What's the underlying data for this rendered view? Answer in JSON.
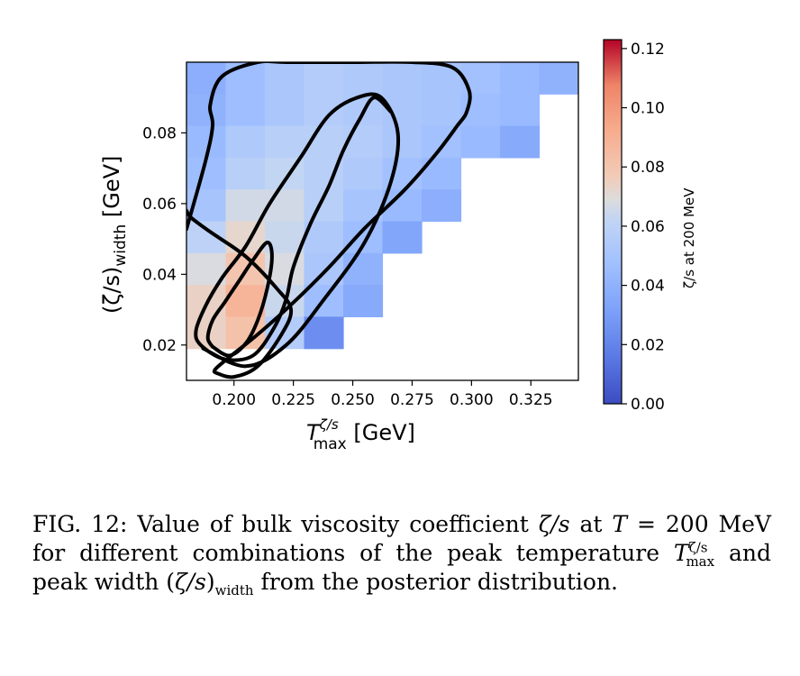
{
  "chart_data": {
    "type": "heatmap",
    "xlabel": "T",
    "xlabel_sup": "ζ/s",
    "xlabel_sub": "max",
    "xlabel_unit": " [GeV]",
    "ylabel": "(ζ/s)",
    "ylabel_sub": "width",
    "ylabel_unit": " [GeV]",
    "colorbar_label": "ζ/s at 200 MeV",
    "xlim": [
      0.18,
      0.345
    ],
    "ylim": [
      0.01,
      0.1
    ],
    "xticks": [
      0.2,
      0.225,
      0.25,
      0.275,
      0.3,
      0.325
    ],
    "xtick_labels": [
      "0.200",
      "0.225",
      "0.250",
      "0.275",
      "0.300",
      "0.325"
    ],
    "yticks": [
      0.02,
      0.04,
      0.06,
      0.08
    ],
    "ytick_labels": [
      "0.02",
      "0.04",
      "0.06",
      "0.08"
    ],
    "colorbar_range": [
      0.0,
      0.123
    ],
    "colorbar_ticks": [
      0.0,
      0.02,
      0.04,
      0.06,
      0.08,
      0.1,
      0.12
    ],
    "colorbar_tick_labels": [
      "0.00",
      "0.02",
      "0.04",
      "0.06",
      "0.08",
      "0.10",
      "0.12"
    ],
    "colormap": "coolwarm",
    "cell_width": 0.0165,
    "cell_height": 0.009,
    "cell_x": [
      0.18,
      0.1965,
      0.213,
      0.2295,
      0.246,
      0.2625,
      0.279,
      0.2955,
      0.312,
      0.3285
    ],
    "cell_y": [
      0.091,
      0.082,
      0.073,
      0.064,
      0.055,
      0.046,
      0.037,
      0.028,
      0.019,
      0.01
    ],
    "cell_values": [
      [
        0.038,
        0.046,
        0.052,
        0.056,
        0.054,
        0.052,
        0.05,
        0.048,
        0.044,
        0.04
      ],
      [
        0.04,
        0.046,
        0.052,
        0.056,
        0.054,
        0.052,
        0.05,
        0.046,
        0.044,
        null
      ],
      [
        0.044,
        0.054,
        0.058,
        0.058,
        0.056,
        0.052,
        0.048,
        0.044,
        0.036,
        null
      ],
      [
        0.046,
        0.058,
        0.062,
        0.058,
        0.054,
        0.048,
        0.044,
        null,
        null,
        null
      ],
      [
        0.05,
        0.066,
        0.066,
        0.058,
        0.05,
        0.044,
        0.038,
        null,
        null,
        null
      ],
      [
        0.06,
        0.072,
        0.064,
        0.054,
        0.046,
        0.034,
        null,
        null,
        null,
        null
      ],
      [
        0.068,
        0.08,
        0.068,
        0.052,
        0.04,
        null,
        null,
        null,
        null,
        null
      ],
      [
        0.074,
        0.088,
        0.064,
        0.046,
        0.036,
        null,
        null,
        null,
        null,
        null
      ],
      [
        0.074,
        0.082,
        0.056,
        0.024,
        null,
        null,
        null,
        null,
        null,
        null
      ],
      null
    ],
    "contours": [
      {
        "name": "outer",
        "x": [
          0.18,
          0.188,
          0.191,
          0.19,
          0.195,
          0.21,
          0.222,
          0.25,
          0.275,
          0.292,
          0.299,
          0.298,
          0.294,
          0.285,
          0.272,
          0.255,
          0.24,
          0.225,
          0.21,
          0.197,
          0.192,
          0.193,
          0.2,
          0.21,
          0.22,
          0.224,
          0.218,
          0.205,
          0.19,
          0.182,
          0.18
        ],
        "y": [
          0.0528,
          0.072,
          0.082,
          0.088,
          0.096,
          0.1,
          0.1,
          0.1,
          0.1,
          0.0985,
          0.092,
          0.086,
          0.082,
          0.074,
          0.064,
          0.053,
          0.042,
          0.032,
          0.023,
          0.016,
          0.013,
          0.012,
          0.011,
          0.014,
          0.023,
          0.03,
          0.036,
          0.045,
          0.052,
          0.056,
          0.058
        ]
      },
      {
        "name": "middle",
        "x": [
          0.187,
          0.205,
          0.222,
          0.238,
          0.255,
          0.266,
          0.269,
          0.262,
          0.252,
          0.24,
          0.228,
          0.215,
          0.205,
          0.195,
          0.188,
          0.184,
          0.186,
          0.196,
          0.208,
          0.217,
          0.222,
          0.225,
          0.232,
          0.24,
          0.246,
          0.253,
          0.259,
          0.266
        ],
        "y": [
          0.019,
          0.014,
          0.02,
          0.033,
          0.049,
          0.066,
          0.08,
          0.09,
          0.09,
          0.085,
          0.073,
          0.06,
          0.048,
          0.039,
          0.031,
          0.024,
          0.02,
          0.016,
          0.017,
          0.025,
          0.033,
          0.042,
          0.054,
          0.065,
          0.075,
          0.084,
          0.09,
          0.086
        ]
      },
      {
        "name": "inner",
        "x": [
          0.191,
          0.198,
          0.205,
          0.21,
          0.214,
          0.216,
          0.214,
          0.208,
          0.202,
          0.196,
          0.191,
          0.189,
          0.191
        ],
        "y": [
          0.0195,
          0.017,
          0.0205,
          0.027,
          0.036,
          0.045,
          0.049,
          0.044,
          0.038,
          0.032,
          0.027,
          0.022,
          0.0195
        ]
      }
    ]
  },
  "caption": {
    "label": "FIG. 12:",
    "text1": " Value of bulk viscosity coefficient ",
    "zeta_s": "ζ/s",
    "text2": " at ",
    "T": "T",
    "text3": " = 200 MeV for different combinations of the peak temperature ",
    "T2": "T",
    "T2_sup": "ζ/s",
    "T2_sub": "max",
    "text4": " and peak width (",
    "zeta_s2": "ζ/s",
    "text5": ")",
    "width_sub": "width",
    "text6": " from the posterior distribution."
  }
}
